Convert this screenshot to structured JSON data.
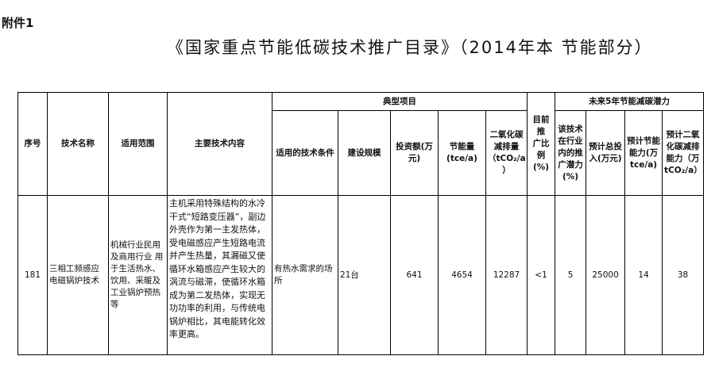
{
  "annex_label": "附件1",
  "title": "《国家重点节能低碳技术推广目录》（2014年本 节能部分）",
  "table": {
    "headers": {
      "seq": "序号",
      "name": "技术名称",
      "scope": "适用范围",
      "content": "主要技术内容",
      "typical_project": "典型项目",
      "conditions": "适用的技术条件",
      "scale": "建设规模",
      "investment": "投资额(万\n元)",
      "energy_saving": "节能量\n(tce/a)",
      "co2_reduction": "二氧化碳\n减排量\n（tCO₂/a\n）",
      "current_ratio": "目前推\n广比例\n(%)",
      "future_potential": "未来5年节能减碳潜力",
      "industry_potential": "该技术\n在行业\n内的推\n广潜力\n(%)",
      "total_investment": "预计总投\n入(万元)",
      "saving_capacity": "预计节能\n能力(万\ntce/a)",
      "co2_capacity": "预计二氧\n化碳减排\n能力（万\ntCO₂/a）"
    },
    "rows": [
      {
        "seq": "181",
        "name": "三相工频感应电磁锅炉技术",
        "scope": "机械行业民用及商用行业 用于生活热水、饮用、采暖及工业锅炉预热等",
        "content": "主机采用特殊结构的水冷干式“短路变压器”，副边外壳作为第一主发热体，受电磁感应产生短路电流并产生热量，其漏磁又使循环水箱感应产生较大的涡流与磁滞，使循环水箱成为第二发热体，实现无功功率的利用，与传统电锅炉相比，其电能转化效率更高。",
        "conditions": "有热水需求的场所",
        "scale": "21台",
        "investment": "641",
        "energy_saving": "4654",
        "co2_reduction": "12287",
        "current_ratio": "<1",
        "industry_potential": "5",
        "total_investment": "25000",
        "saving_capacity": "14",
        "co2_capacity": "38"
      }
    ]
  }
}
